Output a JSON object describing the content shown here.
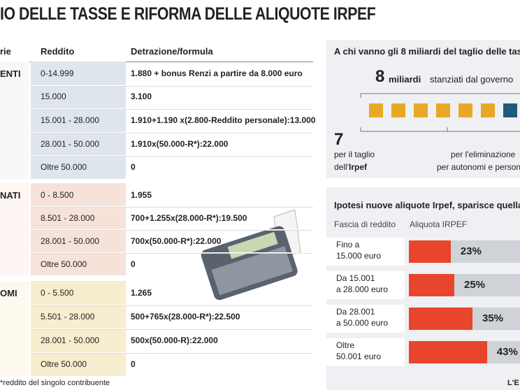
{
  "title": "IO DELLE TASSE E RIFORMA DELLE ALIQUOTE IRPEF",
  "table": {
    "headers": [
      "rie",
      "Reddito",
      "Detrazione/formula"
    ],
    "groups": [
      {
        "category": "ENTI",
        "rows": [
          [
            "0-14.999",
            "1.880 + bonus Renzi a partire da 8.000 euro"
          ],
          [
            "15.000",
            "3.100"
          ],
          [
            "15.001 - 28.000",
            "1.910+1.190 x(2.800-Reddito personale):13.000"
          ],
          [
            "28.001 - 50.000",
            "1.910x(50.000-R*):22.000"
          ],
          [
            "Oltre 50.000",
            "0"
          ]
        ]
      },
      {
        "category": "NATI",
        "rows": [
          [
            "0 - 8.500",
            "1.955"
          ],
          [
            "8.501 - 28.000",
            "700+1.255x(28.000-R*):19.500"
          ],
          [
            "28.001 - 50.000",
            "700x(50.000-R*):22.000"
          ],
          [
            "Oltre 50.000",
            "0"
          ]
        ]
      },
      {
        "category": "OMI",
        "rows": [
          [
            "0 - 5.500",
            "1.265"
          ],
          [
            "5.501 - 28.000",
            "500+765x(28.000-R*):22.500"
          ],
          [
            "28.001 - 50.000",
            "500x(50.000-R):22.000"
          ],
          [
            "Oltre 50.000",
            "0"
          ]
        ]
      }
    ]
  },
  "footnote": "*reddito del singolo contribuente",
  "source": "L'E",
  "distribution": {
    "title": "A chi vanno gli 8 miliardi del taglio delle tas",
    "total": "8",
    "total_unit": "miliardi",
    "total_text": "stanziati dal governo",
    "left_number": "7",
    "left_text_1": "per il taglio",
    "left_text_2": "dell'",
    "left_text_bold": "Irpef",
    "right_text_1": "per l'eliminazione",
    "right_text_2": "per autonomi e person"
  },
  "rates": {
    "title": "Ipotesi nuove aliquote Irpef, sparisce quella",
    "headers": [
      "Fascia di reddito",
      "Aliquota IRPEF"
    ],
    "rows": [
      {
        "fascia": [
          "Fino a",
          "15.000 euro"
        ],
        "value": 23,
        "label": "23%"
      },
      {
        "fascia": [
          "Da 15.001",
          "a 28.000 euro"
        ],
        "value": 25,
        "label": "25%"
      },
      {
        "fascia": [
          "Da 28.001",
          "a 50.000 euro"
        ],
        "value": 35,
        "label": "35%"
      },
      {
        "fascia": [
          "Oltre",
          "50.001 euro"
        ],
        "value": 43,
        "label": "43%"
      }
    ]
  }
}
